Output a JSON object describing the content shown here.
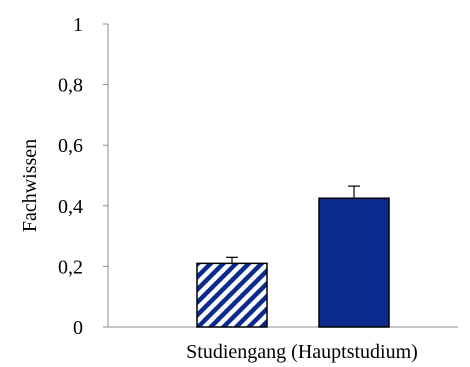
{
  "chart_data": {
    "type": "bar",
    "title": "",
    "xlabel": "Studiengang (Hauptstudium)",
    "ylabel": "Fachwissen",
    "ylim": [
      0,
      1
    ],
    "yticks": [
      0,
      0.2,
      0.4,
      0.6,
      0.8,
      1
    ],
    "ytick_labels": [
      "0",
      "0,2",
      "0,4",
      "0,6",
      "0,8",
      "1"
    ],
    "grid": false,
    "legend": "none",
    "bars": [
      {
        "value": 0.21,
        "error": 0.02,
        "fill": "hatched",
        "color": "#0a2a8c"
      },
      {
        "value": 0.425,
        "error": 0.04,
        "fill": "solid",
        "color": "#0a2a8c"
      }
    ]
  }
}
